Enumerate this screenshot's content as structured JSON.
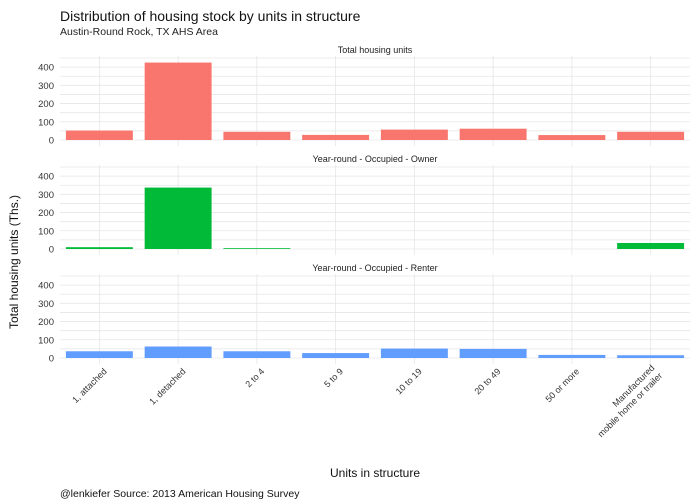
{
  "chart_data": {
    "type": "bar",
    "title": "Distribution of housing stock by units in structure",
    "subtitle": "Austin-Round Rock, TX AHS Area",
    "ylabel": "Total housing units (Ths.)",
    "xlabel": "Units in structure",
    "caption": "@lenkiefer Source: 2013 American Housing Survey",
    "categories": [
      "1, attached",
      "1, detached",
      "2 to 4",
      "5 to 9",
      "10 to 19",
      "20 to 49",
      "50 or more",
      "Manufactured\nmobile home or trailer"
    ],
    "ylim": [
      0,
      450
    ],
    "yticks": [
      "0",
      "100",
      "200",
      "300",
      "400"
    ],
    "grid": true,
    "panels": [
      {
        "name": "Total housing units",
        "color": "#F8766D",
        "values": [
          52,
          425,
          45,
          28,
          57,
          62,
          27,
          45
        ]
      },
      {
        "name": "Year-round - Occupied - Owner",
        "color": "#00BA38",
        "values": [
          10,
          337,
          4,
          0,
          0,
          0,
          0,
          33
        ]
      },
      {
        "name": "Year-round - Occupied - Renter",
        "color": "#619CFF",
        "values": [
          37,
          63,
          37,
          27,
          52,
          50,
          17,
          15
        ]
      }
    ]
  }
}
